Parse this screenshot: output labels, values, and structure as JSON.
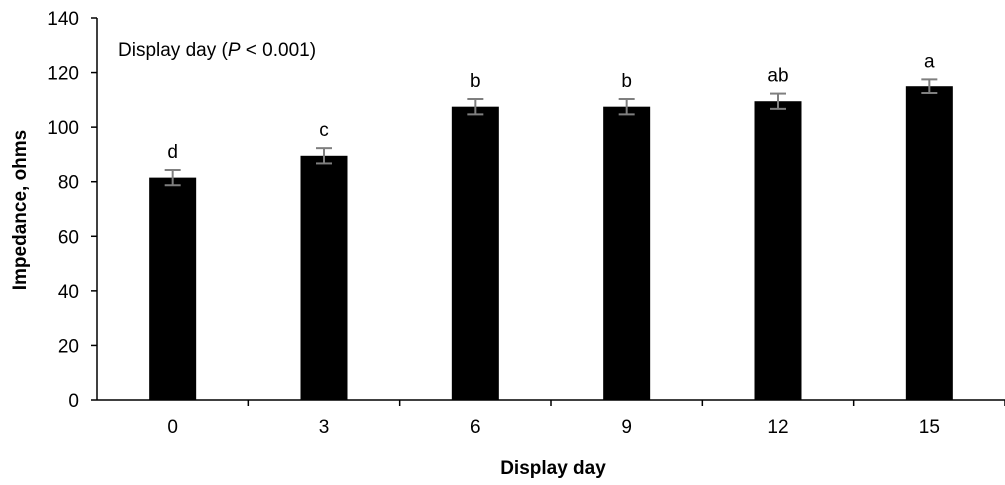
{
  "chart_data": {
    "type": "bar",
    "title": "",
    "xlabel": "Display day",
    "ylabel": "Impedance, ohms",
    "ylim": [
      0,
      140
    ],
    "yticks": [
      0,
      20,
      40,
      60,
      80,
      100,
      120,
      140
    ],
    "grid": false,
    "categories": [
      "0",
      "3",
      "6",
      "9",
      "12",
      "15"
    ],
    "values": [
      81.5,
      89.5,
      107.5,
      107.5,
      109.5,
      115.0
    ],
    "error": [
      2.8,
      2.8,
      2.8,
      2.8,
      2.8,
      2.5
    ],
    "significance_letters": [
      "d",
      "c",
      "b",
      "b",
      "ab",
      "a"
    ],
    "annotation": {
      "prefix": "Display day (",
      "italic": "P",
      "suffix": " < 0.001)"
    },
    "bar_color": "#000000",
    "error_bar_color": "#7f7f7f"
  }
}
